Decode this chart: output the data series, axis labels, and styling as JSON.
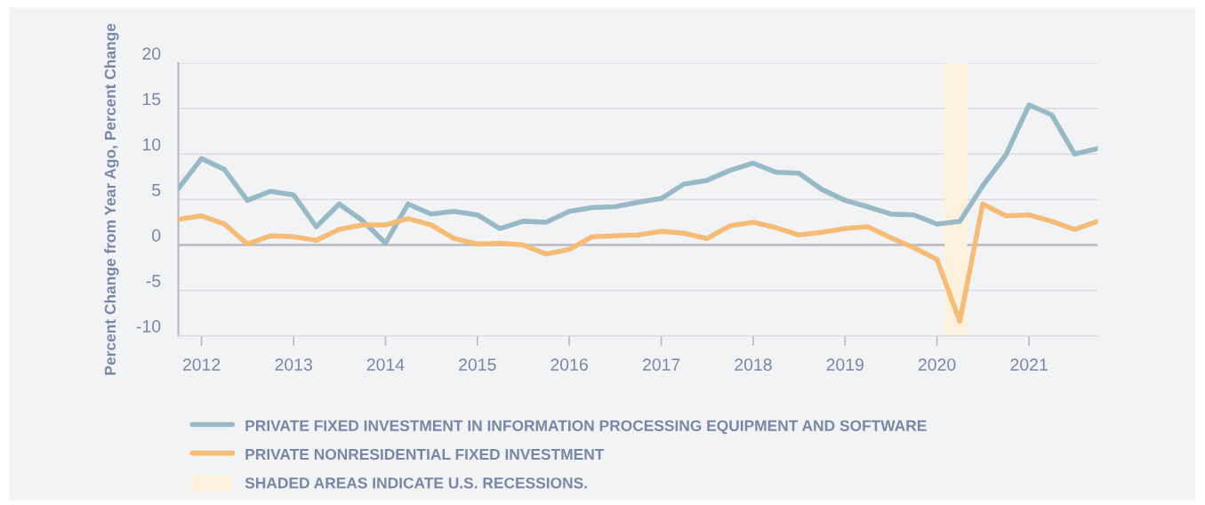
{
  "chart_data": {
    "type": "line",
    "ylabel": "Percent Change from Year Ago, Percent Change",
    "x": [
      "2011-10-01",
      "2012-01-01",
      "2012-04-01",
      "2012-07-01",
      "2012-10-01",
      "2013-01-01",
      "2013-04-01",
      "2013-07-01",
      "2013-10-01",
      "2014-01-01",
      "2014-04-01",
      "2014-07-01",
      "2014-10-01",
      "2015-01-01",
      "2015-04-01",
      "2015-07-01",
      "2015-10-01",
      "2016-01-01",
      "2016-04-01",
      "2016-07-01",
      "2016-10-01",
      "2017-01-01",
      "2017-04-01",
      "2017-07-01",
      "2017-10-01",
      "2018-01-01",
      "2018-04-01",
      "2018-07-01",
      "2018-10-01",
      "2019-01-01",
      "2019-04-01",
      "2019-07-01",
      "2019-10-01",
      "2020-01-01",
      "2020-04-01",
      "2020-07-01",
      "2020-10-01",
      "2021-01-01",
      "2021-04-01",
      "2021-07-01",
      "2021-10-01"
    ],
    "series": [
      {
        "name": "PRIVATE FIXED INVESTMENT IN INFORMATION PROCESSING EQUIPMENT AND SOFTWARE",
        "color": "#98bac6",
        "values": [
          6.2,
          9.5,
          8.3,
          4.9,
          5.9,
          5.5,
          2.0,
          4.5,
          2.7,
          0.2,
          4.5,
          3.4,
          3.7,
          3.3,
          1.8,
          2.6,
          2.5,
          3.7,
          4.1,
          4.2,
          4.7,
          5.1,
          6.7,
          7.1,
          8.2,
          9.0,
          8.0,
          7.9,
          6.1,
          4.9,
          4.2,
          3.4,
          3.3,
          2.3,
          2.6,
          6.5,
          9.9,
          15.4,
          14.3,
          10.0,
          10.6
        ]
      },
      {
        "name": "PRIVATE NONRESIDENTIAL FIXED INVESTMENT",
        "color": "#f5bc78",
        "values": [
          2.8,
          3.2,
          2.3,
          0.1,
          1.0,
          0.9,
          0.5,
          1.7,
          2.2,
          2.2,
          2.9,
          2.2,
          0.7,
          0.1,
          0.2,
          0.0,
          -1.0,
          -0.5,
          0.9,
          1.0,
          1.1,
          1.5,
          1.3,
          0.7,
          2.1,
          2.5,
          1.9,
          1.1,
          1.4,
          1.8,
          2.0,
          0.8,
          -0.3,
          -1.6,
          -8.4,
          4.5,
          3.2,
          3.3,
          2.6,
          1.7,
          2.6
        ]
      }
    ],
    "bands": [
      {
        "axis": "x",
        "from": "2020-02-01",
        "to": "2020-04-30",
        "label": "SHADED AREAS INDICATE U.S. RECESSIONS.",
        "color": "#fdf1dc"
      }
    ],
    "xlim": [
      "2011-10-01",
      "2021-10-01"
    ],
    "xticks": [
      "2012",
      "2013",
      "2014",
      "2015",
      "2016",
      "2017",
      "2018",
      "2019",
      "2020",
      "2021"
    ],
    "ylim": [
      -10,
      20
    ],
    "yticks": [
      20,
      15,
      10,
      5,
      0,
      -5,
      -10
    ],
    "grid": "y",
    "legend": "bottom",
    "marker": "none",
    "line_style": "solid"
  }
}
